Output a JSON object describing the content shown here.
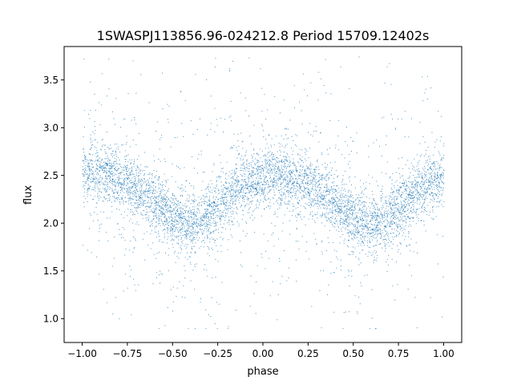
{
  "chart_data": {
    "type": "scatter",
    "title": "1SWASPJ113856.96-024212.8 Period 15709.12402s",
    "xlabel": "phase",
    "ylabel": "flux",
    "xlim": [
      -1.1,
      1.1
    ],
    "ylim": [
      0.75,
      3.85
    ],
    "x_ticks": [
      -1.0,
      -0.75,
      -0.5,
      -0.25,
      0.0,
      0.25,
      0.5,
      0.75,
      1.0
    ],
    "x_tick_labels": [
      "−1.00",
      "−0.75",
      "−0.50",
      "−0.25",
      "0.00",
      "0.25",
      "0.50",
      "0.75",
      "1.00"
    ],
    "y_ticks": [
      1.0,
      1.5,
      2.0,
      2.5,
      3.0,
      3.5
    ],
    "y_tick_labels": [
      "1.0",
      "1.5",
      "2.0",
      "2.5",
      "3.0",
      "3.5"
    ],
    "grid": false,
    "legend": "none",
    "marker_color": "#1f77b4",
    "series": [
      {
        "x_range": [
          -1.0,
          1.0
        ],
        "profile_points": [
          {
            "x": -1.0,
            "y": 2.52
          },
          {
            "x": -0.9,
            "y": 2.52
          },
          {
            "x": -0.8,
            "y": 2.46
          },
          {
            "x": -0.7,
            "y": 2.36
          },
          {
            "x": -0.6,
            "y": 2.22
          },
          {
            "x": -0.5,
            "y": 2.07
          },
          {
            "x": -0.42,
            "y": 1.97
          },
          {
            "x": -0.35,
            "y": 2.03
          },
          {
            "x": -0.25,
            "y": 2.2
          },
          {
            "x": -0.15,
            "y": 2.36
          },
          {
            "x": -0.05,
            "y": 2.46
          },
          {
            "x": 0.05,
            "y": 2.5
          },
          {
            "x": 0.15,
            "y": 2.47
          },
          {
            "x": 0.25,
            "y": 2.4
          },
          {
            "x": 0.35,
            "y": 2.28
          },
          {
            "x": 0.45,
            "y": 2.13
          },
          {
            "x": 0.52,
            "y": 2.03
          },
          {
            "x": 0.6,
            "y": 1.96
          },
          {
            "x": 0.68,
            "y": 2.02
          },
          {
            "x": 0.75,
            "y": 2.15
          },
          {
            "x": 0.85,
            "y": 2.33
          },
          {
            "x": 0.95,
            "y": 2.45
          },
          {
            "x": 1.0,
            "y": 2.5
          }
        ],
        "scatter_spread": 0.15,
        "outlier_range": [
          0.9,
          3.75
        ]
      }
    ]
  }
}
